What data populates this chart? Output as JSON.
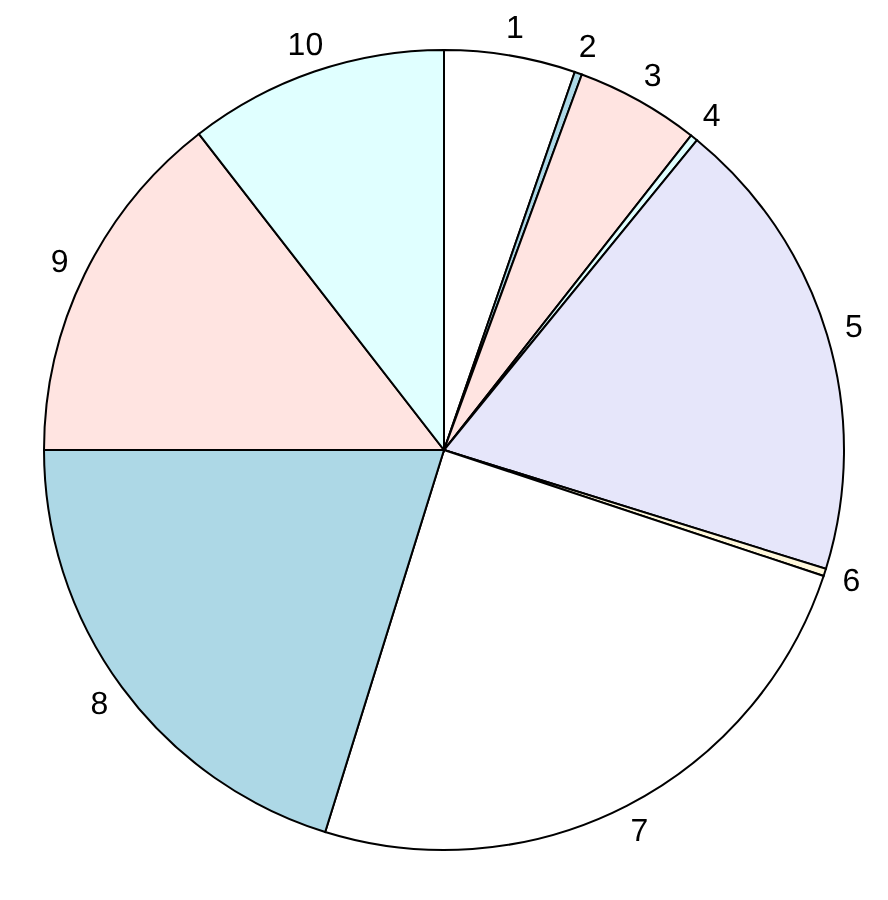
{
  "chart_data": {
    "type": "pie",
    "categories": [
      "1",
      "2",
      "3",
      "4",
      "5",
      "6",
      "7",
      "8",
      "9",
      "10"
    ],
    "values": [
      5.3,
      0.3,
      5.0,
      0.3,
      18.9,
      0.3,
      24.7,
      20.2,
      14.5,
      10.5
    ],
    "colors": [
      "#ffffff",
      "#add8e6",
      "#ffe4e1",
      "#e0ffff",
      "#e6e6fa",
      "#fff8dc",
      "#ffffff",
      "#add8e6",
      "#ffe4e1",
      "#e0ffff"
    ],
    "legend": false
  }
}
